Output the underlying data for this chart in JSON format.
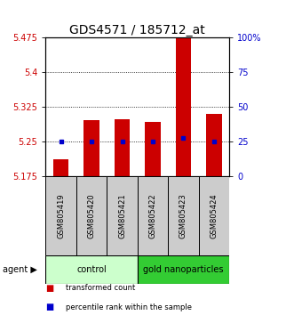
{
  "title": "GDS4571 / 185712_at",
  "samples": [
    "GSM805419",
    "GSM805420",
    "GSM805421",
    "GSM805422",
    "GSM805423",
    "GSM805424"
  ],
  "red_values": [
    5.213,
    5.296,
    5.298,
    5.292,
    5.475,
    5.31
  ],
  "blue_values": [
    5.251,
    5.251,
    5.251,
    5.251,
    5.258,
    5.251
  ],
  "ymin": 5.175,
  "ymax": 5.475,
  "y_ticks": [
    5.175,
    5.25,
    5.325,
    5.4,
    5.475
  ],
  "y_ticks_labels": [
    "5.175",
    "5.25",
    "5.325",
    "5.4",
    "5.475"
  ],
  "right_ticks": [
    0,
    25,
    50,
    75,
    100
  ],
  "right_tick_positions": [
    5.175,
    5.25,
    5.325,
    5.4,
    5.475
  ],
  "bar_width": 0.5,
  "control_label": "control",
  "gold_label": "gold nanoparticles",
  "agent_label": "agent",
  "legend_red": "transformed count",
  "legend_blue": "percentile rank within the sample",
  "red_color": "#cc0000",
  "blue_color": "#0000cc",
  "control_bg": "#ccffcc",
  "gold_bg": "#33cc33",
  "sample_bg": "#cccccc",
  "title_fontsize": 10,
  "tick_fontsize": 7,
  "label_fontsize": 7
}
